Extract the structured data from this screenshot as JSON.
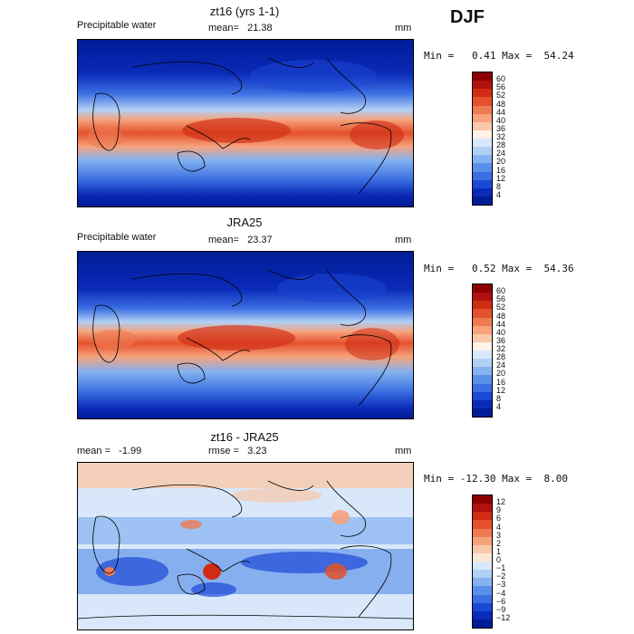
{
  "season": "DJF",
  "panels": [
    {
      "title": "zt16 (yrs 1-1)",
      "variable": "Precipitable water",
      "mean_label": "mean=",
      "mean_value": "21.38",
      "units": "mm",
      "min_label": "Min =",
      "min_value": "0.41",
      "max_label": "Max =",
      "max_value": "54.24",
      "colorbar": {
        "labels": [
          "60",
          "56",
          "52",
          "48",
          "44",
          "40",
          "36",
          "32",
          "28",
          "24",
          "20",
          "16",
          "12",
          "8",
          "4"
        ],
        "colors": [
          "#8b0000",
          "#b01010",
          "#d02c14",
          "#e4512c",
          "#ee7a52",
          "#f6a27c",
          "#fac8aa",
          "#fff2e6",
          "#d8e8fa",
          "#b0d0f6",
          "#85b2f0",
          "#5a90ea",
          "#3a6ee2",
          "#1c48d6",
          "#0a2ab8",
          "#001c96"
        ]
      }
    },
    {
      "title": "JRA25",
      "variable": "Precipitable water",
      "mean_label": "mean=",
      "mean_value": "23.37",
      "units": "mm",
      "min_label": "Min =",
      "min_value": "0.52",
      "max_label": "Max =",
      "max_value": "54.36",
      "colorbar": {
        "labels": [
          "60",
          "56",
          "52",
          "48",
          "44",
          "40",
          "36",
          "32",
          "28",
          "24",
          "20",
          "16",
          "12",
          "8",
          "4"
        ],
        "colors": [
          "#8b0000",
          "#b01010",
          "#d02c14",
          "#e4512c",
          "#ee7a52",
          "#f6a27c",
          "#fac8aa",
          "#fff2e6",
          "#d8e8fa",
          "#b0d0f6",
          "#85b2f0",
          "#5a90ea",
          "#3a6ee2",
          "#1c48d6",
          "#0a2ab8",
          "#001c96"
        ]
      }
    },
    {
      "title": "zt16 - JRA25",
      "variable": "",
      "mean_label": "mean =",
      "mean_value": "-1.99",
      "rmse_label": "rmse =",
      "rmse_value": "3.23",
      "units": "mm",
      "min_label": "Min =",
      "min_value": "-12.30",
      "max_label": "Max =",
      "max_value": "8.00",
      "colorbar": {
        "labels": [
          "12",
          "9",
          "6",
          "4",
          "3",
          "2",
          "1",
          "0",
          "−1",
          "−2",
          "−3",
          "−4",
          "−6",
          "−9",
          "−12"
        ],
        "colors": [
          "#8b0000",
          "#b01010",
          "#d02c14",
          "#e4512c",
          "#ee7a52",
          "#f6a27c",
          "#fac8aa",
          "#fbe6d6",
          "#d8e8fa",
          "#b0d0f6",
          "#85b2f0",
          "#5a90ea",
          "#3a6ee2",
          "#1c48d6",
          "#0a2ab8",
          "#001c96"
        ]
      }
    }
  ]
}
